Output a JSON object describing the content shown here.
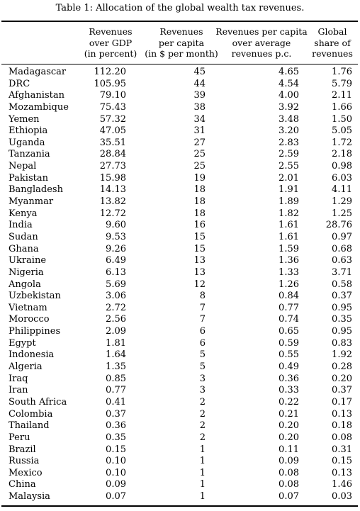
{
  "table": {
    "caption": "Table 1: Allocation of the global wealth tax revenues.",
    "headers": {
      "gdp": [
        "Revenues",
        "over GDP",
        "(in percent)"
      ],
      "per_capita": [
        "Revenues",
        "per capita",
        "(in $ per month)"
      ],
      "avg": [
        "Revenues per capita",
        "over average",
        "revenues p.c."
      ],
      "share": [
        "Global",
        "share of",
        "revenues"
      ]
    },
    "rows": [
      {
        "country": "Madagascar",
        "gdp": "112.20",
        "per_capita": "45",
        "avg": "4.65",
        "share": "1.76"
      },
      {
        "country": "DRC",
        "gdp": "105.95",
        "per_capita": "44",
        "avg": "4.54",
        "share": "5.79"
      },
      {
        "country": "Afghanistan",
        "gdp": "79.10",
        "per_capita": "39",
        "avg": "4.00",
        "share": "2.11"
      },
      {
        "country": "Mozambique",
        "gdp": "75.43",
        "per_capita": "38",
        "avg": "3.92",
        "share": "1.66"
      },
      {
        "country": "Yemen",
        "gdp": "57.32",
        "per_capita": "34",
        "avg": "3.48",
        "share": "1.50"
      },
      {
        "country": "Ethiopia",
        "gdp": "47.05",
        "per_capita": "31",
        "avg": "3.20",
        "share": "5.05"
      },
      {
        "country": "Uganda",
        "gdp": "35.51",
        "per_capita": "27",
        "avg": "2.83",
        "share": "1.72"
      },
      {
        "country": "Tanzania",
        "gdp": "28.84",
        "per_capita": "25",
        "avg": "2.59",
        "share": "2.18"
      },
      {
        "country": "Nepal",
        "gdp": "27.73",
        "per_capita": "25",
        "avg": "2.55",
        "share": "0.98"
      },
      {
        "country": "Pakistan",
        "gdp": "15.98",
        "per_capita": "19",
        "avg": "2.01",
        "share": "6.03"
      },
      {
        "country": "Bangladesh",
        "gdp": "14.13",
        "per_capita": "18",
        "avg": "1.91",
        "share": "4.11"
      },
      {
        "country": "Myanmar",
        "gdp": "13.82",
        "per_capita": "18",
        "avg": "1.89",
        "share": "1.29"
      },
      {
        "country": "Kenya",
        "gdp": "12.72",
        "per_capita": "18",
        "avg": "1.82",
        "share": "1.25"
      },
      {
        "country": "India",
        "gdp": "9.60",
        "per_capita": "16",
        "avg": "1.61",
        "share": "28.76"
      },
      {
        "country": "Sudan",
        "gdp": "9.53",
        "per_capita": "15",
        "avg": "1.61",
        "share": "0.97"
      },
      {
        "country": "Ghana",
        "gdp": "9.26",
        "per_capita": "15",
        "avg": "1.59",
        "share": "0.68"
      },
      {
        "country": "Ukraine",
        "gdp": "6.49",
        "per_capita": "13",
        "avg": "1.36",
        "share": "0.63"
      },
      {
        "country": "Nigeria",
        "gdp": "6.13",
        "per_capita": "13",
        "avg": "1.33",
        "share": "3.71"
      },
      {
        "country": "Angola",
        "gdp": "5.69",
        "per_capita": "12",
        "avg": "1.26",
        "share": "0.58"
      },
      {
        "country": "Uzbekistan",
        "gdp": "3.06",
        "per_capita": "8",
        "avg": "0.84",
        "share": "0.37"
      },
      {
        "country": "Vietnam",
        "gdp": "2.72",
        "per_capita": "7",
        "avg": "0.77",
        "share": "0.95"
      },
      {
        "country": "Morocco",
        "gdp": "2.56",
        "per_capita": "7",
        "avg": "0.74",
        "share": "0.35"
      },
      {
        "country": "Philippines",
        "gdp": "2.09",
        "per_capita": "6",
        "avg": "0.65",
        "share": "0.95"
      },
      {
        "country": "Egypt",
        "gdp": "1.81",
        "per_capita": "6",
        "avg": "0.59",
        "share": "0.83"
      },
      {
        "country": "Indonesia",
        "gdp": "1.64",
        "per_capita": "5",
        "avg": "0.55",
        "share": "1.92"
      },
      {
        "country": "Algeria",
        "gdp": "1.35",
        "per_capita": "5",
        "avg": "0.49",
        "share": "0.28"
      },
      {
        "country": "Iraq",
        "gdp": "0.85",
        "per_capita": "3",
        "avg": "0.36",
        "share": "0.20"
      },
      {
        "country": "Iran",
        "gdp": "0.77",
        "per_capita": "3",
        "avg": "0.33",
        "share": "0.37"
      },
      {
        "country": "South Africa",
        "gdp": "0.41",
        "per_capita": "2",
        "avg": "0.22",
        "share": "0.17"
      },
      {
        "country": "Colombia",
        "gdp": "0.37",
        "per_capita": "2",
        "avg": "0.21",
        "share": "0.13"
      },
      {
        "country": "Thailand",
        "gdp": "0.36",
        "per_capita": "2",
        "avg": "0.20",
        "share": "0.18"
      },
      {
        "country": "Peru",
        "gdp": "0.35",
        "per_capita": "2",
        "avg": "0.20",
        "share": "0.08"
      },
      {
        "country": "Brazil",
        "gdp": "0.15",
        "per_capita": "1",
        "avg": "0.11",
        "share": "0.31"
      },
      {
        "country": "Russia",
        "gdp": "0.10",
        "per_capita": "1",
        "avg": "0.09",
        "share": "0.15"
      },
      {
        "country": "Mexico",
        "gdp": "0.10",
        "per_capita": "1",
        "avg": "0.08",
        "share": "0.13"
      },
      {
        "country": "China",
        "gdp": "0.09",
        "per_capita": "1",
        "avg": "0.08",
        "share": "1.46"
      },
      {
        "country": "Malaysia",
        "gdp": "0.07",
        "per_capita": "1",
        "avg": "0.07",
        "share": "0.03"
      }
    ]
  }
}
